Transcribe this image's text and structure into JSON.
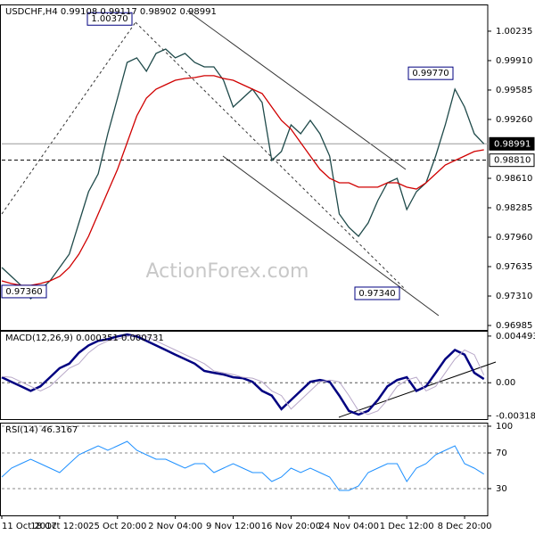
{
  "chart_data": [
    {
      "type": "line",
      "title": "USDCHF,H4  0.99108 0.99117 0.98902 0.98991",
      "watermark": "ActionForex.com",
      "x": [
        0,
        5,
        10,
        15,
        20,
        25,
        30,
        35,
        40,
        45,
        50,
        55,
        60,
        65,
        70,
        75,
        80,
        85,
        90,
        95,
        100,
        105,
        110,
        115,
        120,
        125,
        130,
        135,
        140,
        145,
        150,
        155,
        160,
        165,
        170,
        175,
        180,
        185,
        190,
        195,
        200,
        205,
        210,
        215,
        220,
        225,
        230,
        235,
        240,
        245,
        250
      ],
      "xlim": [
        0,
        252
      ],
      "ylim": [
        0.96936,
        1.0053
      ],
      "yticks": [
        1.00235,
        {
          "value": 0.9991,
          "label": "0.99910"
        },
        0.99585,
        {
          "value": 0.9926,
          "label": "0.99260"
        },
        {
          "value": 0.9861,
          "label": "0.98610"
        },
        0.98285,
        {
          "value": 0.9796,
          "label": "0.97960"
        },
        0.97635,
        {
          "value": 0.9731,
          "label": "0.97310"
        },
        0.96985
      ],
      "series": [
        {
          "color": "#1f4a4a",
          "values": [
            0.97625,
            0.97527,
            0.97428,
            0.97281,
            0.97379,
            0.97478,
            0.97625,
            0.97773,
            0.98118,
            0.98462,
            0.98659,
            0.99102,
            0.99496,
            0.9989,
            0.9994,
            0.99792,
            0.99989,
            1.00038,
            0.9994,
            0.99989,
            0.9989,
            0.99841,
            0.99841,
            0.99693,
            0.99398,
            0.99496,
            0.99595,
            0.99447,
            0.98807,
            0.98906,
            0.99201,
            0.99102,
            0.9925,
            0.99102,
            0.98856,
            0.98216,
            0.98068,
            0.9797,
            0.98118,
            0.98364,
            0.98561,
            0.9861,
            0.98265,
            0.98462,
            0.98561,
            0.98856,
            0.99201,
            0.99595,
            0.99398,
            0.99102,
            0.98991
          ]
        },
        {
          "color": "#d00000",
          "values": [
            0.97478,
            0.97448,
            0.97428,
            0.97428,
            0.97448,
            0.97478,
            0.97527,
            0.97625,
            0.97773,
            0.9797,
            0.98216,
            0.98462,
            0.98709,
            0.99004,
            0.99299,
            0.99496,
            0.99595,
            0.99644,
            0.99693,
            0.99713,
            0.99723,
            0.99743,
            0.99743,
            0.99713,
            0.99693,
            0.99644,
            0.99595,
            0.99546,
            0.99398,
            0.9925,
            0.99152,
            0.99004,
            0.98856,
            0.98709,
            0.9861,
            0.98561,
            0.98561,
            0.98512,
            0.98512,
            0.98512,
            0.98561,
            0.98561,
            0.98512,
            0.98492,
            0.98561,
            0.98659,
            0.98758,
            0.98807,
            0.98856,
            0.98906,
            0.98925
          ]
        }
      ],
      "annotations": [
        {
          "value": 1.0037,
          "label": "1.00370"
        },
        {
          "value": 0.9977,
          "label": "0.99770"
        },
        {
          "value": 0.9736,
          "label": "0.97360"
        },
        {
          "value": 0.9734,
          "label": "0.97340"
        }
      ],
      "levels": [
        {
          "value": 0.98991,
          "label": "0.98991",
          "style": "solid"
        },
        {
          "value": 0.9881,
          "label": "0.98810",
          "style": "dashed"
        }
      ]
    },
    {
      "type": "line",
      "title": "MACD(12,26,9) 0.000351 0.000731",
      "x": [
        0,
        5,
        10,
        15,
        20,
        25,
        30,
        35,
        40,
        45,
        50,
        55,
        60,
        65,
        70,
        75,
        80,
        85,
        90,
        95,
        100,
        105,
        110,
        115,
        120,
        125,
        130,
        135,
        140,
        145,
        150,
        155,
        160,
        165,
        170,
        175,
        180,
        185,
        190,
        195,
        200,
        205,
        210,
        215,
        220,
        225,
        230,
        235,
        240,
        245,
        250
      ],
      "xlim": [
        0,
        252
      ],
      "ylim": [
        -0.0035,
        0.005
      ],
      "yticks": [
        0.004493,
        {
          "value": 0,
          "label": "0.00"
        },
        -0.003186
      ],
      "zero_line": true,
      "series": [
        {
          "color": "#000080",
          "width": 2.5,
          "values": [
            0.00053,
            9e-05,
            -0.00035,
            -0.00079,
            -0.00035,
            0.00053,
            0.0014,
            0.00184,
            0.00289,
            0.00359,
            0.00403,
            0.0042,
            0.00446,
            0.00464,
            0.00446,
            0.00403,
            0.00359,
            0.00315,
            0.00271,
            0.00228,
            0.00184,
            0.00114,
            0.00096,
            0.00079,
            0.00053,
            0.00044,
            9e-05,
            -0.00079,
            -0.00123,
            -0.00254,
            -0.00166,
            -0.00079,
            9e-05,
            0.00026,
            9e-05,
            -0.00123,
            -0.00271,
            -0.00306,
            -0.00271,
            -0.00166,
            -0.00035,
            0.00026,
            0.00053,
            -0.00079,
            -0.00035,
            0.00096,
            0.00228,
            0.00315,
            0.00271,
            0.00096,
            0.000351
          ]
        },
        {
          "color": "#b8a8c8",
          "width": 1,
          "values": [
            0.0006,
            0.00053,
            9e-05,
            -0.00035,
            -0.00079,
            -0.00035,
            0.00053,
            0.0014,
            0.00184,
            0.00289,
            0.00359,
            0.00403,
            0.0042,
            0.00446,
            0.00464,
            0.00446,
            0.00403,
            0.00359,
            0.00315,
            0.00271,
            0.00228,
            0.00184,
            0.00114,
            0.00096,
            0.00079,
            0.00053,
            0.00044,
            9e-05,
            -0.00079,
            -0.00123,
            -0.00254,
            -0.00166,
            -0.00079,
            9e-05,
            0.00026,
            9e-05,
            -0.00123,
            -0.00271,
            -0.00306,
            -0.00271,
            -0.00166,
            -0.00035,
            0.00026,
            0.00053,
            -0.00079,
            -0.00035,
            0.00096,
            0.00228,
            0.00315,
            0.00271,
            0.000731
          ]
        }
      ]
    },
    {
      "type": "line",
      "title": "RSI(14) 46.3167",
      "x": [
        0,
        5,
        10,
        15,
        20,
        25,
        30,
        35,
        40,
        45,
        50,
        55,
        60,
        65,
        70,
        75,
        80,
        85,
        90,
        95,
        100,
        105,
        110,
        115,
        120,
        125,
        130,
        135,
        140,
        145,
        150,
        155,
        160,
        165,
        170,
        175,
        180,
        185,
        190,
        195,
        200,
        205,
        210,
        215,
        220,
        225,
        230,
        235,
        240,
        245,
        250
      ],
      "xlim": [
        0,
        252
      ],
      "ylim": [
        0,
        104
      ],
      "yticks": [
        100,
        70,
        30
      ],
      "grid": "dashed",
      "xticks": [
        {
          "value": 0,
          "label": "11 Oct 2017"
        },
        {
          "value": 30,
          "label": "18 Oct 12:00"
        },
        {
          "value": 60,
          "label": "25 Oct 20:00"
        },
        {
          "value": 90,
          "label": "2 Nov 04:00"
        },
        {
          "value": 120,
          "label": "9 Nov 12:00"
        },
        {
          "value": 150,
          "label": "16 Nov 20:00"
        },
        {
          "value": 180,
          "label": "24 Nov 04:00"
        },
        {
          "value": 210,
          "label": "1 Dec 12:00"
        },
        {
          "value": 240,
          "label": "8 Dec 20:00"
        }
      ],
      "series": [
        {
          "color": "#1e90ff",
          "width": 1,
          "values": [
            43,
            53,
            58,
            63,
            58,
            53,
            48,
            58,
            68,
            73,
            78,
            73,
            78,
            83,
            73,
            68,
            63,
            63,
            58,
            53,
            58,
            58,
            48,
            53,
            58,
            53,
            48,
            48,
            38,
            43,
            53,
            48,
            53,
            48,
            43,
            28,
            28,
            33,
            48,
            53,
            58,
            58,
            38,
            53,
            58,
            68,
            73,
            78,
            58,
            53,
            46.3167
          ]
        }
      ]
    }
  ]
}
